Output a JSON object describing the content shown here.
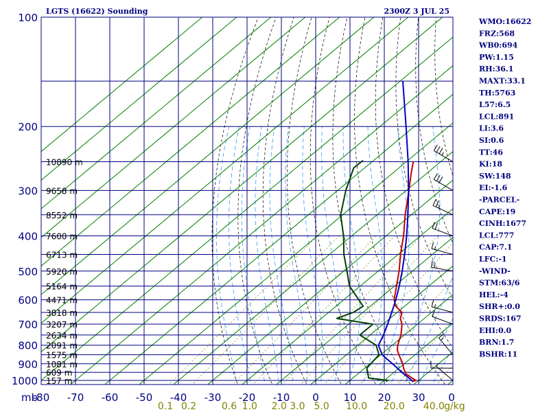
{
  "header": {
    "station": "LGTS (16622) Sounding",
    "time": "2300Z  3 JUL 25"
  },
  "indices": [
    "WMO:16622",
    "FRZ:568",
    "WB0:694",
    "PW:1.15",
    "RH:36.1",
    "MAXT:33.1",
    "TH:5763",
    "L57:6.5",
    "LCL:891",
    "LI:3.6",
    "SI:0.6",
    "TT:46",
    "KI:18",
    "SW:148",
    "EI:-1.6",
    "-PARCEL-",
    "CAPE:19",
    "CINH:1677",
    "LCL:777",
    "CAP:7.1",
    "LFC:-1",
    "-WIND-",
    "STM:63/6",
    "HEL:-4",
    "SHR+:0.0",
    "SRDS:167",
    "EHI:0.0",
    "BRN:1.7",
    "BSHR:11"
  ],
  "colors": {
    "isobar": "#000080",
    "isotherm": "#008000",
    "dry_adiabat": "#000000",
    "moist_adiabat": "#3399ff",
    "temperature": "#c00000",
    "dewpoint": "#004000",
    "parcel": "#0000c0",
    "barb": "#000000"
  },
  "chart_data": {
    "type": "skew-t",
    "title": "LGTS (16622) Sounding",
    "pressure_unit": "mb",
    "pressure_levels": [
      100,
      200,
      300,
      400,
      500,
      600,
      700,
      800,
      900,
      1000
    ],
    "pressure_range": [
      1050,
      100
    ],
    "temperature_ticks": [
      -80,
      -70,
      -60,
      -50,
      -40,
      -30,
      -20,
      -10,
      0,
      10,
      20,
      30
    ],
    "height_labels": [
      {
        "p": 250,
        "label": "10890 m"
      },
      {
        "p": 300,
        "label": "9658 m"
      },
      {
        "p": 350,
        "label": "8552 m"
      },
      {
        "p": 400,
        "label": "7600 m"
      },
      {
        "p": 450,
        "label": "6713 m"
      },
      {
        "p": 500,
        "label": "5920 m"
      },
      {
        "p": 550,
        "label": "5164 m"
      },
      {
        "p": 600,
        "label": "4471 m"
      },
      {
        "p": 650,
        "label": "3818 m"
      },
      {
        "p": 700,
        "label": "3207 m"
      },
      {
        "p": 750,
        "label": "2634 m"
      },
      {
        "p": 800,
        "label": "2091 m"
      },
      {
        "p": 850,
        "label": "1575 m"
      },
      {
        "p": 900,
        "label": "1081 m"
      },
      {
        "p": 950,
        "label": "609 m"
      },
      {
        "p": 1000,
        "label": "157 m"
      }
    ],
    "mixing_ratio_labels": [
      "0.1",
      "0.2",
      "0.6",
      "1.0",
      "2.0",
      "3.0",
      "5.0",
      "10.0",
      "20.0",
      "40.0",
      "g/kg"
    ],
    "mixing_ratio_values": [
      0.1,
      0.2,
      0.6,
      1.0,
      2.0,
      3.0,
      5.0,
      10.0,
      20.0,
      40.0
    ],
    "series": [
      {
        "name": "temperature",
        "points": [
          [
            1007,
            28.6
          ],
          [
            1000,
            29.2
          ],
          [
            980,
            26.6
          ],
          [
            960,
            24.1
          ],
          [
            925,
            21.3
          ],
          [
            900,
            19.6
          ],
          [
            850,
            15.3
          ],
          [
            825,
            13.2
          ],
          [
            800,
            11.6
          ],
          [
            750,
            9.0
          ],
          [
            700,
            5.5
          ],
          [
            675,
            3.0
          ],
          [
            650,
            1.4
          ],
          [
            625,
            -2.6
          ],
          [
            600,
            -5.3
          ],
          [
            550,
            -9.4
          ],
          [
            500,
            -13.9
          ],
          [
            450,
            -19.3
          ],
          [
            400,
            -24.9
          ],
          [
            350,
            -31.8
          ],
          [
            300,
            -39.2
          ],
          [
            270,
            -44.4
          ],
          [
            250,
            -48.0
          ]
        ]
      },
      {
        "name": "dewpoint",
        "points": [
          [
            1007,
            20.9
          ],
          [
            1000,
            21.0
          ],
          [
            985,
            14.6
          ],
          [
            925,
            10.6
          ],
          [
            850,
            9.5
          ],
          [
            800,
            5.3
          ],
          [
            750,
            -3.0
          ],
          [
            700,
            -3.0
          ],
          [
            675,
            -15.6
          ],
          [
            650,
            -12.8
          ],
          [
            625,
            -12.1
          ],
          [
            600,
            -15.6
          ],
          [
            550,
            -23.1
          ],
          [
            500,
            -29.1
          ],
          [
            450,
            -35.8
          ],
          [
            400,
            -42.4
          ],
          [
            350,
            -50.6
          ],
          [
            300,
            -57.6
          ],
          [
            260,
            -63.2
          ],
          [
            248,
            -63.1
          ]
        ]
      },
      {
        "name": "parcel",
        "points": [
          [
            1007,
            28.6
          ],
          [
            1000,
            28.0
          ],
          [
            950,
            22.3
          ],
          [
            900,
            16.6
          ],
          [
            850,
            10.4
          ],
          [
            800,
            6.0
          ],
          [
            750,
            3.9
          ],
          [
            700,
            1.3
          ],
          [
            650,
            -1.6
          ],
          [
            600,
            -4.8
          ],
          [
            550,
            -8.6
          ],
          [
            500,
            -13.0
          ],
          [
            450,
            -18.1
          ],
          [
            400,
            -24.0
          ],
          [
            350,
            -31.0
          ],
          [
            300,
            -39.3
          ],
          [
            250,
            -49.5
          ],
          [
            200,
            -62.4
          ],
          [
            150,
            -79.2
          ]
        ]
      }
    ],
    "wind_barbs": [
      {
        "p": 250,
        "dir": 300,
        "speed_kt": 35
      },
      {
        "p": 300,
        "dir": 300,
        "speed_kt": 30
      },
      {
        "p": 350,
        "dir": 295,
        "speed_kt": 25
      },
      {
        "p": 400,
        "dir": 290,
        "speed_kt": 20
      },
      {
        "p": 450,
        "dir": 285,
        "speed_kt": 15
      },
      {
        "p": 500,
        "dir": 280,
        "speed_kt": 15
      },
      {
        "p": 650,
        "dir": 285,
        "speed_kt": 15
      },
      {
        "p": 700,
        "dir": 290,
        "speed_kt": 10
      },
      {
        "p": 850,
        "dir": 320,
        "speed_kt": 15
      },
      {
        "p": 925,
        "dir": 270,
        "speed_kt": 10
      },
      {
        "p": 1000,
        "dir": 310,
        "speed_kt": 5
      }
    ]
  }
}
